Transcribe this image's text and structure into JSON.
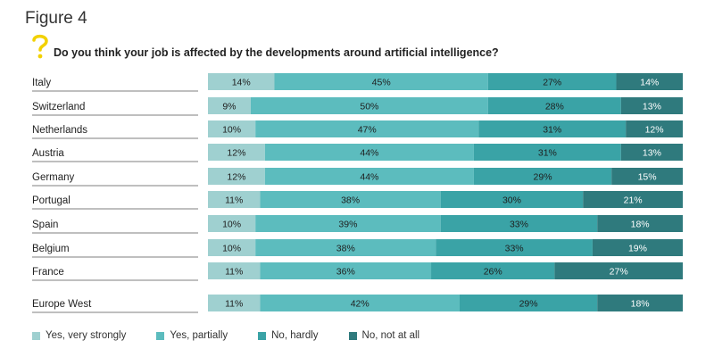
{
  "figure_label": "Figure 4",
  "question": "Do you think your job is affected by the developments around artificial intelligence?",
  "colors": {
    "yes_very_strongly": "#9fd0d0",
    "yes_partially": "#5cbcbe",
    "no_hardly": "#3aa3a6",
    "no_not_at_all": "#2f7a7d",
    "accent_question_mark": "#f2d100"
  },
  "chart_data": {
    "type": "bar",
    "orientation": "horizontal",
    "stacked": true,
    "categories": [
      "Italy",
      "Switzerland",
      "Netherlands",
      "Austria",
      "Germany",
      "Portugal",
      "Spain",
      "Belgium",
      "France",
      "Europe West"
    ],
    "series": [
      {
        "name": "Yes, very strongly",
        "values": [
          14,
          9,
          10,
          12,
          12,
          11,
          10,
          10,
          11,
          11
        ]
      },
      {
        "name": "Yes, partially",
        "values": [
          45,
          50,
          47,
          44,
          44,
          38,
          39,
          38,
          36,
          42
        ]
      },
      {
        "name": "No, hardly",
        "values": [
          27,
          28,
          31,
          31,
          29,
          30,
          33,
          33,
          26,
          29
        ]
      },
      {
        "name": "No, not at all",
        "values": [
          14,
          13,
          12,
          13,
          15,
          21,
          18,
          19,
          27,
          18
        ]
      }
    ],
    "unit": "%",
    "data_labels": true,
    "legend_position": "bottom"
  }
}
